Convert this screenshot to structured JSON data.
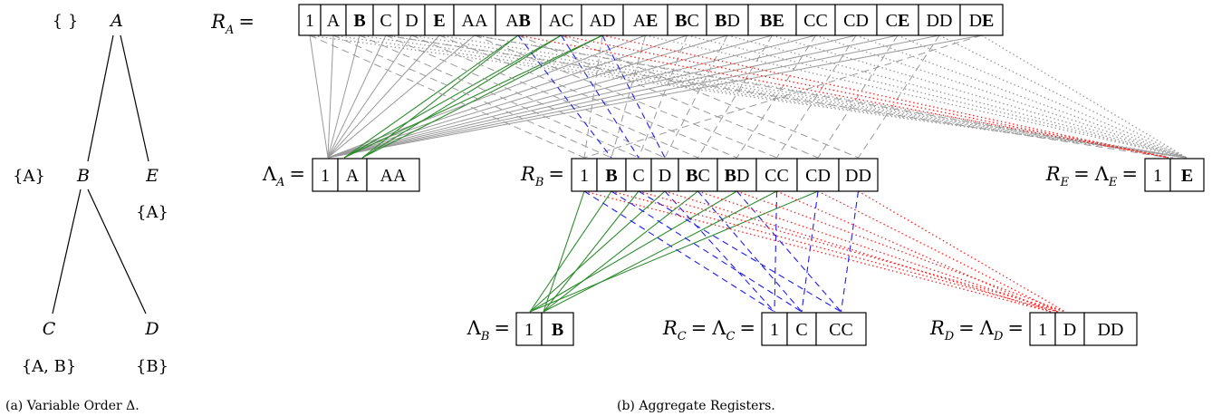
{
  "panel_a": {
    "caption": "(a) Variable Order Δ.",
    "nodes": {
      "A": {
        "name": "A",
        "set": "{ }"
      },
      "B": {
        "name": "B",
        "set": "{A}"
      },
      "E": {
        "name": "E",
        "set": "{A}"
      },
      "C": {
        "name": "C",
        "set": "{A, B}"
      },
      "D": {
        "name": "D",
        "set": "{B}"
      }
    }
  },
  "panel_b": {
    "caption": "(b) Aggregate Registers.",
    "registers": {
      "RA": {
        "label_main": "R",
        "label_sub": "A",
        "eq": "=",
        "cells": [
          "1",
          "A",
          "B",
          "C",
          "D",
          "E",
          "AA",
          "AB",
          "AC",
          "AD",
          "AE",
          "BC",
          "BD",
          "BE",
          "CC",
          "CD",
          "CE",
          "DD",
          "DE"
        ]
      },
      "LA": {
        "label_main": "Λ",
        "label_sub": "A",
        "eq": "=",
        "cells": [
          "1",
          "A",
          "AA"
        ]
      },
      "RB": {
        "label_main": "R",
        "label_sub": "B",
        "eq": "=",
        "cells": [
          "1",
          "B",
          "C",
          "D",
          "BC",
          "BD",
          "CC",
          "CD",
          "DD"
        ]
      },
      "RE": {
        "label_main": "R",
        "label_sub": "E",
        "eq": "=",
        "label2_main": "Λ",
        "label2_sub": "E",
        "eq2": "=",
        "cells": [
          "1",
          "E"
        ]
      },
      "LB": {
        "label_main": "Λ",
        "label_sub": "B",
        "eq": "=",
        "cells": [
          "1",
          "B"
        ]
      },
      "RC": {
        "label_main": "R",
        "label_sub": "C",
        "eq": "=",
        "label2_main": "Λ",
        "label2_sub": "C",
        "eq2": "=",
        "cells": [
          "1",
          "C",
          "CC"
        ]
      },
      "RD": {
        "label_main": "R",
        "label_sub": "D",
        "eq": "=",
        "label2_main": "Λ",
        "label2_sub": "D",
        "eq2": "=",
        "cells": [
          "1",
          "D",
          "DD"
        ]
      }
    },
    "bold_letters": [
      "B",
      "E"
    ],
    "colors": {
      "gray_solid": "#9a9a9a",
      "gray_dashed": "#9a9a9a",
      "gray_dotted": "#9a9a9a",
      "green_solid": "#2e8b2e",
      "blue_dashed": "#1a1aff",
      "red_dotted": "#ff2020"
    }
  }
}
